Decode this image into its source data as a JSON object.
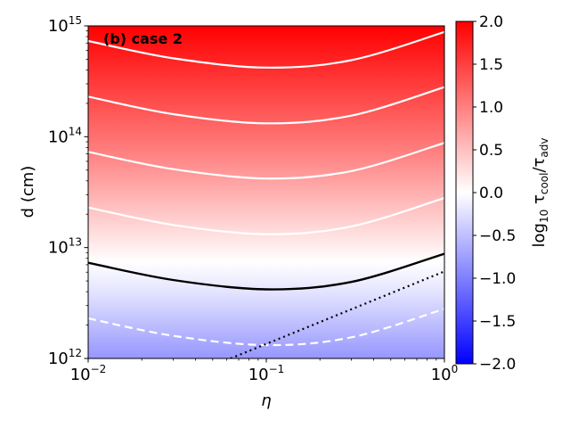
{
  "chart_data": {
    "type": "heatmap",
    "panel_label": "(b) case 2",
    "xlabel": "η",
    "ylabel": "d (cm)",
    "x_scale": "log",
    "y_scale": "log",
    "xlim": [
      0.01,
      1
    ],
    "ylim": [
      1000000000000.0,
      1000000000000000.0
    ],
    "x_ticks": [
      {
        "value": 0.01,
        "base": "10",
        "exp": "−2"
      },
      {
        "value": 0.1,
        "base": "10",
        "exp": "−1"
      },
      {
        "value": 1,
        "base": "10",
        "exp": "0"
      }
    ],
    "y_ticks": [
      {
        "value": 1000000000000.0,
        "base": "10",
        "exp": "12"
      },
      {
        "value": 10000000000000.0,
        "base": "10",
        "exp": "13"
      },
      {
        "value": 100000000000000.0,
        "base": "10",
        "exp": "14"
      },
      {
        "value": 1000000000000000.0,
        "base": "10",
        "exp": "15"
      }
    ],
    "colorbar": {
      "label_parts": {
        "pre": "log",
        "pre_sub": "10",
        "tau1": " τ",
        "sub1": "cool",
        "slash": "/τ",
        "sub2": "adv"
      },
      "range": [
        -2.0,
        2.0
      ],
      "colormap": [
        "#0000ff",
        "#ffffff",
        "#ff0000"
      ],
      "ticks": [
        "2.0",
        "1.5",
        "1.0",
        "0.5",
        "0.0",
        "−0.5",
        "−1.0",
        "−1.5",
        "−2.0"
      ]
    },
    "field_description": "log10(tau_cool/tau_adv) rises with log10 d; ~0 near d≈4e12 cm at eta=0.1",
    "contours": [
      {
        "level": -0.5,
        "style": "dashed",
        "color": "#ffffff",
        "points": [
          [
            0.01,
            2300000000000.0
          ],
          [
            0.03,
            1600000000000.0
          ],
          [
            0.1,
            1320000000000.0
          ],
          [
            0.3,
            1550000000000.0
          ],
          [
            1,
            2800000000000.0
          ]
        ]
      },
      {
        "level": 0.0,
        "style": "solid",
        "color": "#000000",
        "points": [
          [
            0.01,
            7300000000000.0
          ],
          [
            0.03,
            5100000000000.0
          ],
          [
            0.1,
            4200000000000.0
          ],
          [
            0.3,
            4900000000000.0
          ],
          [
            1,
            8800000000000.0
          ]
        ]
      },
      {
        "level": 0.5,
        "style": "solid",
        "color": "#ffffff",
        "points": [
          [
            0.01,
            23000000000000.0
          ],
          [
            0.03,
            16000000000000.0
          ],
          [
            0.1,
            13200000000000.0
          ],
          [
            0.3,
            15500000000000.0
          ],
          [
            1,
            28000000000000.0
          ]
        ]
      },
      {
        "level": 1.0,
        "style": "solid",
        "color": "#ffffff",
        "points": [
          [
            0.01,
            73000000000000.0
          ],
          [
            0.03,
            51000000000000.0
          ],
          [
            0.1,
            42000000000000.0
          ],
          [
            0.3,
            49000000000000.0
          ],
          [
            1,
            88000000000000.0
          ]
        ]
      },
      {
        "level": 1.5,
        "style": "solid",
        "color": "#ffffff",
        "points": [
          [
            0.01,
            230000000000000.0
          ],
          [
            0.03,
            160000000000000.0
          ],
          [
            0.1,
            132000000000000.0
          ],
          [
            0.3,
            155000000000000.0
          ],
          [
            1,
            280000000000000.0
          ]
        ]
      },
      {
        "level": 2.0,
        "style": "solid",
        "color": "#ffffff",
        "points": [
          [
            0.01,
            730000000000000.0
          ],
          [
            0.03,
            510000000000000.0
          ],
          [
            0.1,
            420000000000000.0
          ],
          [
            0.3,
            490000000000000.0
          ],
          [
            1,
            880000000000000.0
          ]
        ]
      }
    ],
    "reference_line": {
      "style": "dotted",
      "color": "#000000",
      "points": [
        [
          0.063,
          1000000000000.0
        ],
        [
          1,
          6100000000000.0
        ]
      ]
    }
  }
}
